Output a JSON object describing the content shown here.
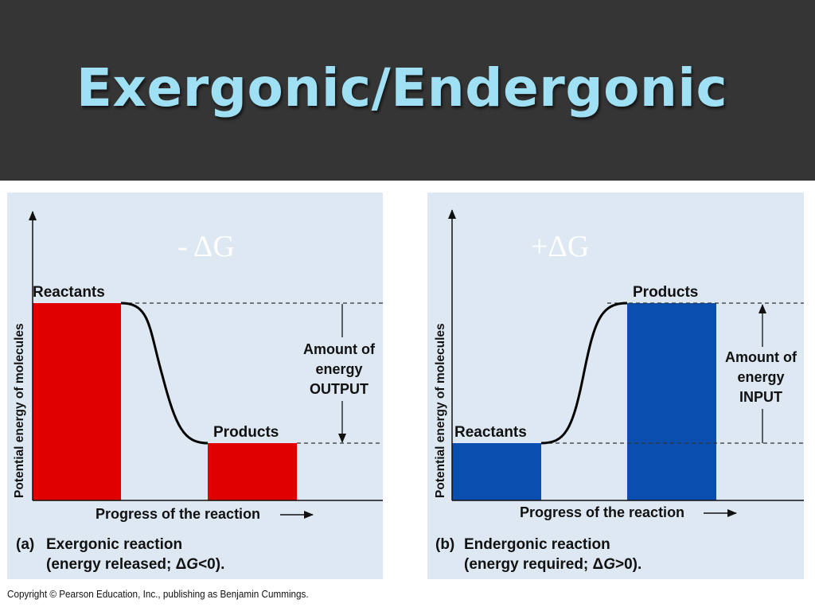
{
  "slide": {
    "title": "Exergonic/Endergonic",
    "copyright": "Copyright © Pearson Education, Inc., publishing as Benjamin Cummings."
  },
  "panels": {
    "exergonic": {
      "delta_g": "- ΔG",
      "y_axis_label": "Potential energy of molecules",
      "x_axis_label": "Progress of the reaction",
      "reactants_label": "Reactants",
      "products_label": "Products",
      "amount_lines": [
        "Amount of",
        "energy",
        "OUTPUT"
      ],
      "caption_letter": "(a)",
      "caption_title": "Exergonic reaction",
      "caption_paren_open": "(energy released; ",
      "caption_delta": "Δ",
      "caption_g": "G",
      "caption_relation": "<0).",
      "bar_color": "#e00000",
      "reactants_level": "high",
      "products_level": "low"
    },
    "endergonic": {
      "delta_g": "+ΔG",
      "y_axis_label": "Potential energy of molecules",
      "x_axis_label": "Progress of the reaction",
      "reactants_label": "Reactants",
      "products_label": "Products",
      "amount_lines": [
        "Amount of",
        "energy",
        "INPUT"
      ],
      "caption_letter": "(b)",
      "caption_title": "Endergonic reaction",
      "caption_paren_open": "(energy required; ",
      "caption_delta": "Δ",
      "caption_g": "G",
      "caption_relation": ">0).",
      "bar_color": "#0a4fb0",
      "reactants_level": "low",
      "products_level": "high"
    }
  }
}
